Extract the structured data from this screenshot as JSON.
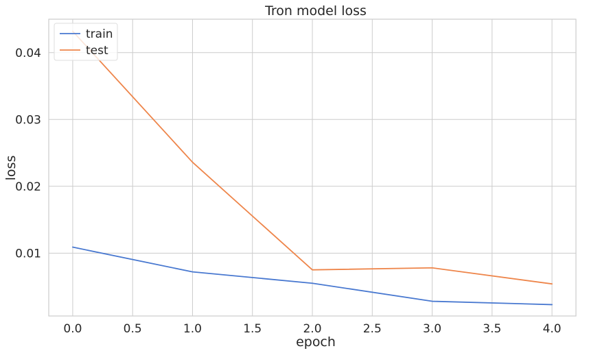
{
  "chart_data": {
    "type": "line",
    "title": "Tron model loss",
    "xlabel": "epoch",
    "ylabel": "loss",
    "x": [
      0,
      1,
      2,
      3,
      4
    ],
    "series": [
      {
        "name": "train",
        "color": "#4878d0",
        "values": [
          0.0109,
          0.0072,
          0.0055,
          0.0028,
          0.0023
        ]
      },
      {
        "name": "test",
        "color": "#ee854a",
        "values": [
          0.0432,
          0.0236,
          0.0075,
          0.0078,
          0.0054
        ]
      }
    ],
    "xlim": [
      -0.2,
      4.2
    ],
    "ylim": [
      0.0006,
      0.045
    ],
    "xticks": [
      0.0,
      0.5,
      1.0,
      1.5,
      2.0,
      2.5,
      3.0,
      3.5,
      4.0
    ],
    "xtick_labels": [
      "0.0",
      "0.5",
      "1.0",
      "1.5",
      "2.0",
      "2.5",
      "3.0",
      "3.5",
      "4.0"
    ],
    "yticks": [
      0.01,
      0.02,
      0.03,
      0.04
    ],
    "ytick_labels": [
      "0.01",
      "0.02",
      "0.03",
      "0.04"
    ],
    "grid": true,
    "legend_position": "top-left",
    "colors": {
      "grid": "#cccccc",
      "frame": "#cccccc",
      "text": "#262626",
      "legend_border": "#dddddd"
    }
  }
}
